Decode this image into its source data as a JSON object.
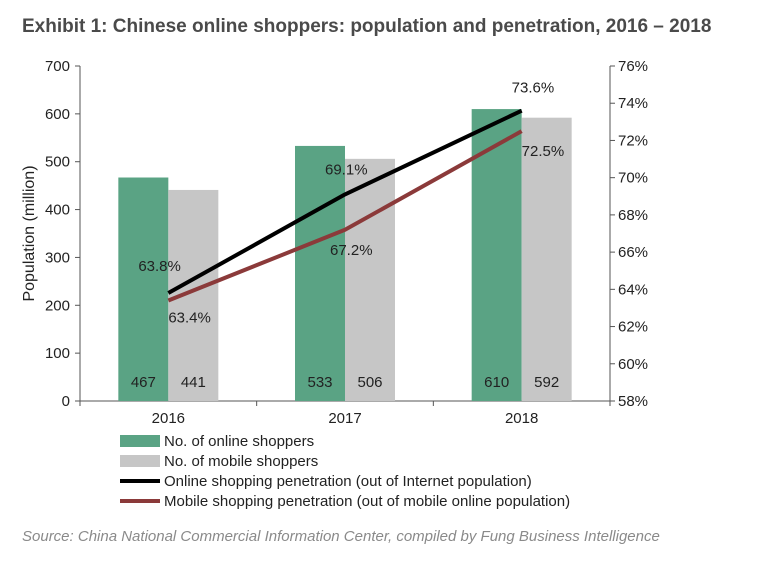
{
  "chart_data": {
    "type": "bar",
    "title": "Exhibit 1: Chinese online shoppers: population and penetration, 2016 – 2018",
    "categories": [
      "2016",
      "2017",
      "2018"
    ],
    "ylabel": "Population (million)",
    "ylim": [
      0,
      700
    ],
    "yticks": [
      "0",
      "100",
      "200",
      "300",
      "400",
      "500",
      "600",
      "700"
    ],
    "y2lim": [
      58,
      76
    ],
    "y2ticks": [
      "58%",
      "60%",
      "62%",
      "64%",
      "66%",
      "68%",
      "70%",
      "72%",
      "74%",
      "76%"
    ],
    "legend_position": "bottom",
    "series": [
      {
        "name": "No. of online shoppers",
        "kind": "bar",
        "axis": "left",
        "color": "#5aa384",
        "values": [
          467,
          533,
          610
        ],
        "labels": [
          "467",
          "533",
          "610"
        ]
      },
      {
        "name": "No. of mobile shoppers",
        "kind": "bar",
        "axis": "left",
        "color": "#c6c6c6",
        "values": [
          441,
          506,
          592
        ],
        "labels": [
          "441",
          "506",
          "592"
        ]
      },
      {
        "name": "Online shopping penetration  (out of Internet population)",
        "kind": "line",
        "axis": "right",
        "color": "#000000",
        "values": [
          63.8,
          69.1,
          73.6
        ],
        "labels": [
          "63.8%",
          "69.1%",
          "73.6%"
        ]
      },
      {
        "name": "Mobile shopping penetration (out of mobile online population)",
        "kind": "line",
        "axis": "right",
        "color": "#8b3a3a",
        "values": [
          63.4,
          67.2,
          72.5
        ],
        "labels": [
          "63.4%",
          "67.2%",
          "72.5%"
        ]
      }
    ],
    "source": "Source: China National Commercial Information Center, compiled by Fung Business Intelligence"
  }
}
